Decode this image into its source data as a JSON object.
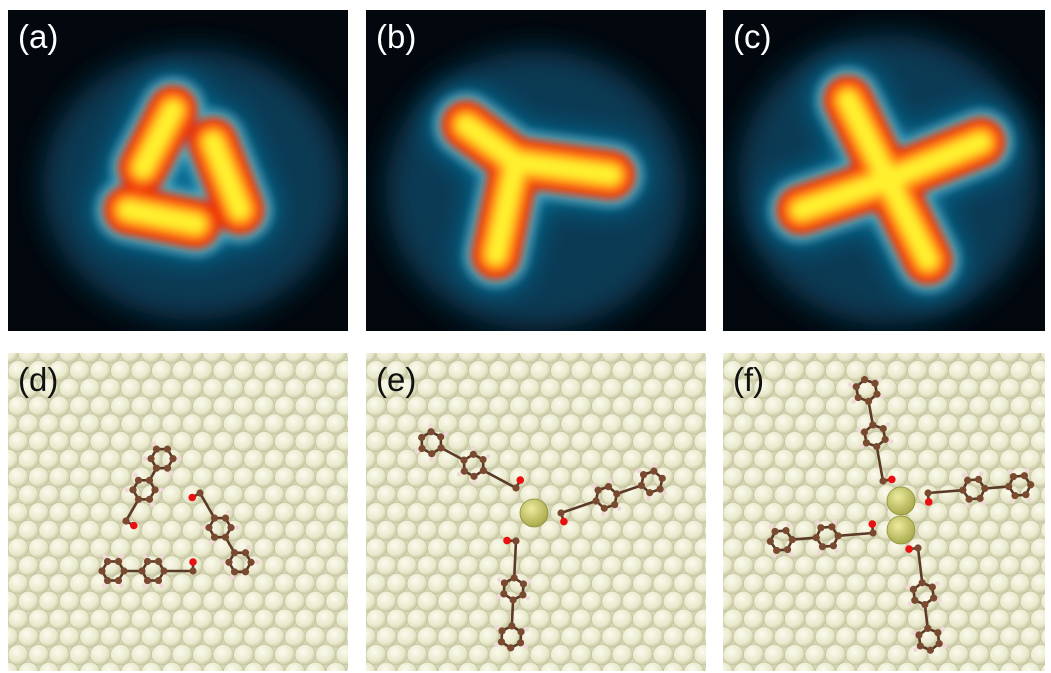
{
  "figure": {
    "panels": [
      {
        "id": "a",
        "label": "(a)",
        "kind": "stm-image"
      },
      {
        "id": "b",
        "label": "(b)",
        "kind": "stm-image"
      },
      {
        "id": "c",
        "label": "(c)",
        "kind": "stm-image"
      },
      {
        "id": "d",
        "label": "(d)",
        "kind": "structure-model"
      },
      {
        "id": "e",
        "label": "(e)",
        "kind": "structure-model"
      },
      {
        "id": "f",
        "label": "(f)",
        "kind": "structure-model"
      }
    ],
    "colors": {
      "stm_background": "#02080e",
      "stm_halo": "#0d6f98",
      "stm_edge": "#3fc4dc",
      "stm_core_red": "#e8200e",
      "stm_core_orange": "#ff7a08",
      "stm_core_yellow": "#fff02e",
      "surface_atom": "#e9e9cc",
      "adatom": "#cccc72",
      "carbon": "#7a4a30",
      "oxygen": "#e81010",
      "hydrogen": "#f0d8d8"
    }
  }
}
